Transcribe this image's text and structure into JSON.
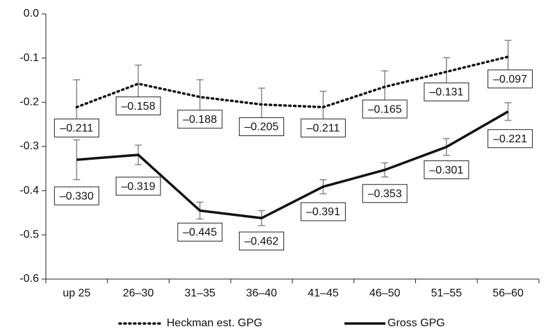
{
  "chart_data": {
    "type": "line",
    "categories": [
      "up 25",
      "26–30",
      "31–35",
      "36–40",
      "41–45",
      "46–50",
      "51–55",
      "56–60"
    ],
    "series": [
      {
        "name": "Heckman est. GPG",
        "color": "#111111",
        "style": "dotted",
        "values": [
          -0.211,
          -0.158,
          -0.188,
          -0.205,
          -0.211,
          -0.165,
          -0.131,
          -0.097
        ],
        "value_labels": [
          "–0.211",
          "–0.158",
          "–0.188",
          "–0.205",
          "–0.211",
          "–0.165",
          "–0.131",
          "–0.097"
        ],
        "errors": [
          0.062,
          0.042,
          0.039,
          0.037,
          0.036,
          0.036,
          0.032,
          0.037
        ]
      },
      {
        "name": "Gross GPG",
        "color": "#111111",
        "style": "solid",
        "values": [
          -0.33,
          -0.319,
          -0.445,
          -0.462,
          -0.391,
          -0.353,
          -0.301,
          -0.221
        ],
        "value_labels": [
          "–0.330",
          "–0.319",
          "–0.445",
          "–0.462",
          "–0.391",
          "–0.353",
          "–0.301",
          "–0.221"
        ],
        "errors": [
          0.045,
          0.022,
          0.019,
          0.017,
          0.016,
          0.016,
          0.019,
          0.02
        ]
      }
    ],
    "ylim": [
      -0.6,
      0
    ],
    "yticks": [
      {
        "value": 0,
        "label": "0.0"
      },
      -0.1,
      -0.2,
      -0.3,
      -0.4,
      -0.5,
      -0.6
    ],
    "error_bar_color": "#888888",
    "legend": "bottom"
  }
}
